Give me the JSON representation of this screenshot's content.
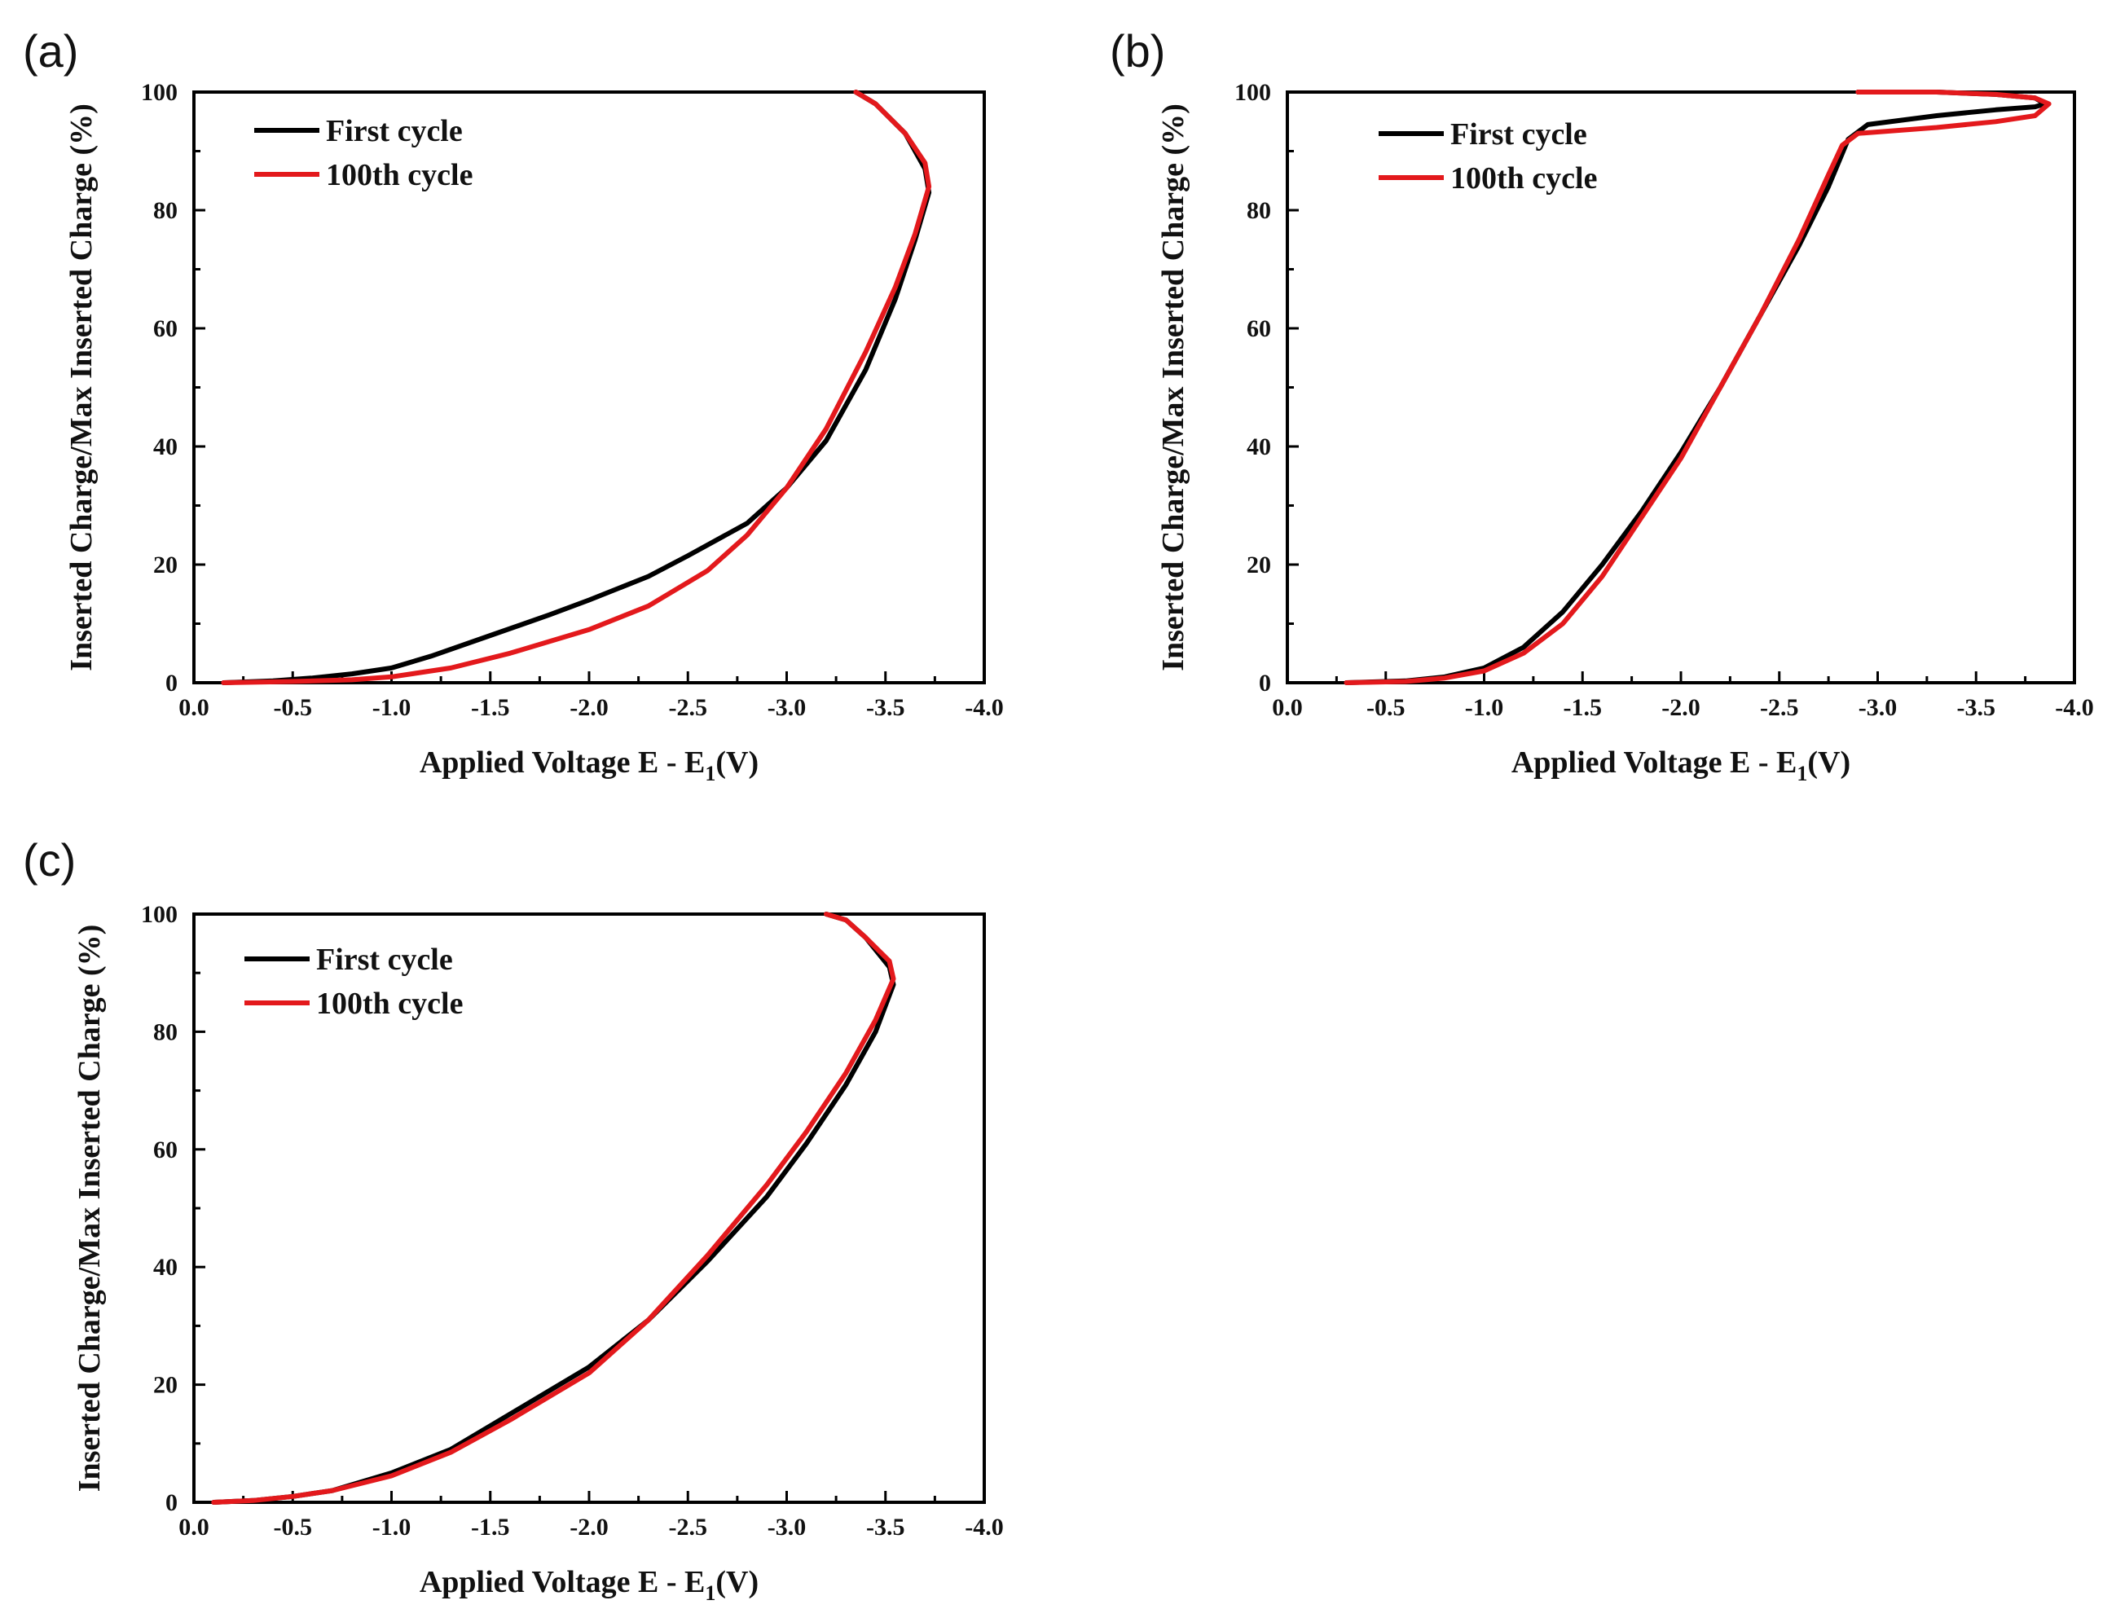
{
  "figure": {
    "panels": [
      "(a)",
      "(b)",
      "(c)"
    ]
  },
  "chart_data": [
    {
      "panel": "(a)",
      "type": "line",
      "title": "",
      "xlabel": "Applied Voltage E - E",
      "xlabel_sub": "1",
      "xlabel_tail": "(V)",
      "ylabel": "Inserted Charge/Max Inserted Charge (%)",
      "xlim": [
        0.0,
        -4.0
      ],
      "ylim": [
        0,
        100
      ],
      "xticks": [
        "0.0",
        "-0.5",
        "-1.0",
        "-1.5",
        "-2.0",
        "-2.5",
        "-3.0",
        "-3.5",
        "-4.0"
      ],
      "yticks": [
        "0",
        "20",
        "40",
        "60",
        "80",
        "100"
      ],
      "legend_position": "top-left",
      "series": [
        {
          "name": "First cycle",
          "color": "#000000",
          "x": [
            -0.15,
            -0.4,
            -0.6,
            -0.8,
            -1.0,
            -1.2,
            -1.5,
            -1.8,
            -2.0,
            -2.3,
            -2.5,
            -2.8,
            -3.0,
            -3.2,
            -3.4,
            -3.55,
            -3.65,
            -3.72,
            -3.7,
            -3.6,
            -3.45,
            -3.35
          ],
          "y": [
            0,
            0.3,
            0.8,
            1.5,
            2.5,
            4.5,
            8,
            11.5,
            14,
            18,
            21.5,
            27,
            33,
            41,
            53,
            65,
            75,
            83,
            87,
            93,
            98,
            100
          ]
        },
        {
          "name": "100th cycle",
          "color": "#e3191c",
          "x": [
            -0.15,
            -0.5,
            -0.8,
            -1.0,
            -1.3,
            -1.6,
            -2.0,
            -2.3,
            -2.6,
            -2.8,
            -3.0,
            -3.2,
            -3.4,
            -3.55,
            -3.65,
            -3.72,
            -3.7,
            -3.6,
            -3.45,
            -3.35
          ],
          "y": [
            0,
            0.2,
            0.5,
            1,
            2.5,
            5,
            9,
            13,
            19,
            25,
            33,
            43,
            56,
            67,
            76,
            84,
            88,
            93,
            98,
            100
          ]
        }
      ]
    },
    {
      "panel": "(b)",
      "type": "line",
      "title": "",
      "xlabel": "Applied Voltage E - E",
      "xlabel_sub": "1",
      "xlabel_tail": "(V)",
      "ylabel": "Inserted Charge/Max Inserted Charge (%)",
      "xlim": [
        0.0,
        -4.0
      ],
      "ylim": [
        0,
        100
      ],
      "xticks": [
        "0.0",
        "-0.5",
        "-1.0",
        "-1.5",
        "-2.0",
        "-2.5",
        "-3.0",
        "-3.5",
        "-4.0"
      ],
      "yticks": [
        "0",
        "20",
        "40",
        "60",
        "80",
        "100"
      ],
      "legend_position": "top-left",
      "series": [
        {
          "name": "First cycle",
          "color": "#000000",
          "x": [
            -0.3,
            -0.6,
            -0.8,
            -1.0,
            -1.2,
            -1.4,
            -1.6,
            -1.8,
            -2.0,
            -2.2,
            -2.4,
            -2.6,
            -2.75,
            -2.85,
            -2.95,
            -3.3,
            -3.6,
            -3.8,
            -3.85,
            -3.8,
            -3.6,
            -3.3,
            -2.9
          ],
          "y": [
            0,
            0.3,
            1,
            2.5,
            6,
            12,
            20,
            29,
            39,
            50,
            62,
            74,
            84,
            92,
            94.5,
            96,
            97,
            97.5,
            98,
            99,
            99.6,
            100,
            100
          ]
        },
        {
          "name": "100th cycle",
          "color": "#e3191c",
          "x": [
            -0.3,
            -0.6,
            -0.8,
            -1.0,
            -1.2,
            -1.4,
            -1.6,
            -1.8,
            -2.0,
            -2.2,
            -2.4,
            -2.6,
            -2.75,
            -2.82,
            -2.9,
            -3.3,
            -3.6,
            -3.8,
            -3.87,
            -3.8,
            -3.6,
            -3.3,
            -2.9
          ],
          "y": [
            0,
            0.2,
            0.8,
            2,
            5,
            10,
            18,
            28,
            38,
            50,
            62,
            75,
            86,
            91,
            93,
            94,
            95,
            96,
            98,
            99,
            99.6,
            100,
            100
          ]
        }
      ]
    },
    {
      "panel": "(c)",
      "type": "line",
      "title": "",
      "xlabel": "Applied Voltage E - E",
      "xlabel_sub": "1",
      "xlabel_tail": "(V)",
      "ylabel": "Inserted Charge/Max Inserted Charge (%)",
      "xlim": [
        0.0,
        -4.0
      ],
      "ylim": [
        0,
        100
      ],
      "xticks": [
        "0.0",
        "-0.5",
        "-1.0",
        "-1.5",
        "-2.0",
        "-2.5",
        "-3.0",
        "-3.5",
        "-4.0"
      ],
      "yticks": [
        "0",
        "20",
        "40",
        "60",
        "80",
        "100"
      ],
      "legend_position": "top-left",
      "series": [
        {
          "name": "First cycle",
          "color": "#000000",
          "x": [
            -0.1,
            -0.3,
            -0.5,
            -0.7,
            -1.0,
            -1.3,
            -1.6,
            -2.0,
            -2.3,
            -2.6,
            -2.9,
            -3.1,
            -3.3,
            -3.45,
            -3.54,
            -3.52,
            -3.4,
            -3.3,
            -3.2
          ],
          "y": [
            0,
            0.3,
            1,
            2,
            5,
            9,
            15,
            23,
            31,
            41,
            52,
            61,
            71,
            80,
            88,
            91,
            96,
            99,
            100
          ]
        },
        {
          "name": "100th cycle",
          "color": "#e3191c",
          "x": [
            -0.1,
            -0.3,
            -0.5,
            -0.7,
            -1.0,
            -1.3,
            -1.6,
            -2.0,
            -2.3,
            -2.6,
            -2.9,
            -3.1,
            -3.3,
            -3.45,
            -3.54,
            -3.52,
            -3.4,
            -3.3,
            -3.2
          ],
          "y": [
            0,
            0.3,
            1,
            2,
            4.5,
            8.5,
            14,
            22,
            31,
            42,
            54,
            63,
            73,
            82,
            89,
            92,
            96,
            99,
            100
          ]
        }
      ]
    }
  ]
}
